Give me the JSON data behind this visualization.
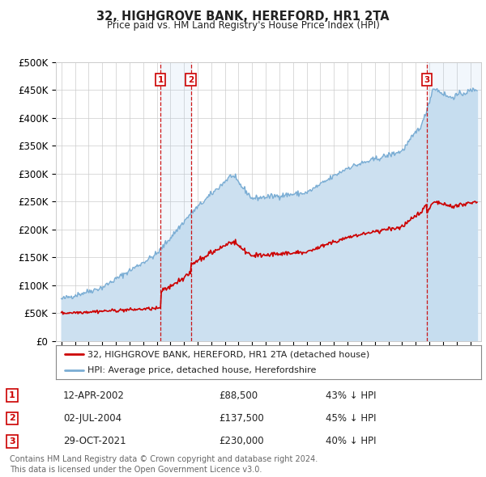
{
  "title": "32, HIGHGROVE BANK, HEREFORD, HR1 2TA",
  "subtitle": "Price paid vs. HM Land Registry's House Price Index (HPI)",
  "ylim": [
    0,
    500000
  ],
  "yticks": [
    0,
    50000,
    100000,
    150000,
    200000,
    250000,
    300000,
    350000,
    400000,
    450000,
    500000
  ],
  "ytick_labels": [
    "£0",
    "£50K",
    "£100K",
    "£150K",
    "£200K",
    "£250K",
    "£300K",
    "£350K",
    "£400K",
    "£450K",
    "£500K"
  ],
  "xlim_start": 1994.6,
  "xlim_end": 2025.8,
  "purchases": [
    {
      "date_label": "12-APR-2002",
      "year": 2002.28,
      "price": 88500,
      "label": "1",
      "hpi_pct": "43% ↓ HPI"
    },
    {
      "date_label": "02-JUL-2004",
      "year": 2004.5,
      "price": 137500,
      "label": "2",
      "hpi_pct": "45% ↓ HPI"
    },
    {
      "date_label": "29-OCT-2021",
      "year": 2021.83,
      "price": 230000,
      "label": "3",
      "hpi_pct": "40% ↓ HPI"
    }
  ],
  "red_line_color": "#cc0000",
  "blue_line_color": "#7aadd4",
  "blue_fill_color": "#cce0f0",
  "grid_color": "#cccccc",
  "vline_color": "#cc0000",
  "marker_box_color": "#cc0000",
  "background_color": "#ffffff",
  "legend_items": [
    "32, HIGHGROVE BANK, HEREFORD, HR1 2TA (detached house)",
    "HPI: Average price, detached house, Herefordshire"
  ],
  "footer_lines": [
    "Contains HM Land Registry data © Crown copyright and database right 2024.",
    "This data is licensed under the Open Government Licence v3.0."
  ]
}
